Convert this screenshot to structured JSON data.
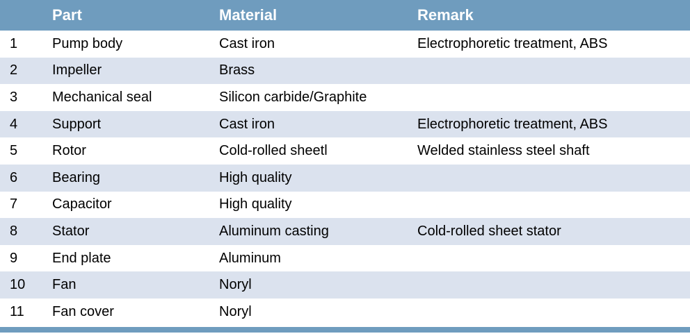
{
  "colors": {
    "header_bg": "#6f9cbe",
    "header_text": "#ffffff",
    "stripe_bg": "#dbe2ee",
    "body_text": "#000000",
    "footer_bar": "#6f9cbe"
  },
  "table": {
    "columns": [
      "",
      "Part",
      "Material",
      "Remark"
    ],
    "rows": [
      {
        "num": "1",
        "part": "Pump body",
        "material": "Cast iron",
        "remark": "Electrophoretic treatment, ABS"
      },
      {
        "num": "2",
        "part": "Impeller",
        "material": "Brass",
        "remark": ""
      },
      {
        "num": "3",
        "part": "Mechanical seal",
        "material": "Silicon carbide/Graphite",
        "remark": ""
      },
      {
        "num": "4",
        "part": "Support",
        "material": "Cast iron",
        "remark": "Electrophoretic treatment, ABS"
      },
      {
        "num": "5",
        "part": "Rotor",
        "material": "Cold-rolled sheetl",
        "remark": "Welded stainless steel shaft"
      },
      {
        "num": "6",
        "part": "Bearing",
        "material": "High quality",
        "remark": ""
      },
      {
        "num": "7",
        "part": "Capacitor",
        "material": "High quality",
        "remark": ""
      },
      {
        "num": "8",
        "part": "Stator",
        "material": "Aluminum casting",
        "remark": "Cold-rolled sheet stator"
      },
      {
        "num": "9",
        "part": "End plate",
        "material": "Aluminum",
        "remark": ""
      },
      {
        "num": "10",
        "part": "Fan",
        "material": "Noryl",
        "remark": ""
      },
      {
        "num": "11",
        "part": "Fan cover",
        "material": "Noryl",
        "remark": ""
      }
    ]
  }
}
